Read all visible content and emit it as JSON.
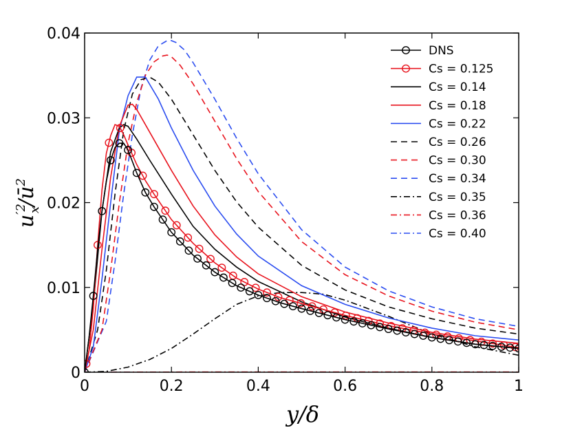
{
  "chart_data": {
    "type": "line",
    "title": "",
    "xlabel": "y/δ",
    "ylabel": "u'x²/ū²",
    "xlim": [
      0,
      1
    ],
    "ylim": [
      0,
      0.04
    ],
    "x_ticks": [
      "0",
      "0.2",
      "0.4",
      "0.6",
      "0.8",
      "1"
    ],
    "y_ticks": [
      "0",
      "0.01",
      "0.02",
      "0.03",
      "0.04"
    ],
    "grid": false,
    "legend_position": "top-right",
    "series": [
      {
        "name": "DNS",
        "color": "#000000",
        "dash": "solid",
        "marker": "circle",
        "x": [
          0,
          0.01,
          0.02,
          0.03,
          0.04,
          0.05,
          0.06,
          0.07,
          0.08,
          0.09,
          0.1,
          0.12,
          0.14,
          0.16,
          0.18,
          0.2,
          0.25,
          0.3,
          0.35,
          0.4,
          0.45,
          0.5,
          0.6,
          0.7,
          0.8,
          0.9,
          1.0
        ],
        "y": [
          0,
          0.004,
          0.009,
          0.0145,
          0.019,
          0.0225,
          0.025,
          0.0265,
          0.027,
          0.027,
          0.0262,
          0.0235,
          0.0212,
          0.0195,
          0.018,
          0.0165,
          0.0138,
          0.0118,
          0.0102,
          0.0091,
          0.0082,
          0.0075,
          0.0062,
          0.0051,
          0.0041,
          0.0033,
          0.0028
        ]
      },
      {
        "name": "Cs = 0.125",
        "color": "#e8121c",
        "dash": "solid",
        "marker": "circle",
        "x": [
          0,
          0.01,
          0.02,
          0.03,
          0.04,
          0.05,
          0.06,
          0.07,
          0.08,
          0.09,
          0.1,
          0.12,
          0.14,
          0.16,
          0.18,
          0.2,
          0.25,
          0.3,
          0.35,
          0.4,
          0.45,
          0.5,
          0.6,
          0.7,
          0.8,
          0.9,
          1.0
        ],
        "y": [
          0,
          0.0025,
          0.0075,
          0.015,
          0.0215,
          0.0258,
          0.0279,
          0.0292,
          0.029,
          0.028,
          0.0268,
          0.0245,
          0.0226,
          0.021,
          0.0195,
          0.018,
          0.0152,
          0.0129,
          0.0111,
          0.0098,
          0.0088,
          0.0081,
          0.0067,
          0.0055,
          0.0045,
          0.0037,
          0.0029
        ]
      },
      {
        "name": "Cs = 0.14",
        "color": "#000000",
        "dash": "solid",
        "marker": "none",
        "x": [
          0,
          0.02,
          0.04,
          0.06,
          0.08,
          0.09,
          0.1,
          0.12,
          0.15,
          0.2,
          0.25,
          0.3,
          0.35,
          0.4,
          0.5,
          0.6,
          0.7,
          0.8,
          0.9,
          1.0
        ],
        "y": [
          0,
          0.008,
          0.019,
          0.026,
          0.0288,
          0.0292,
          0.029,
          0.0275,
          0.025,
          0.021,
          0.0172,
          0.0145,
          0.0124,
          0.0107,
          0.0083,
          0.0065,
          0.0052,
          0.0041,
          0.0033,
          0.0028
        ]
      },
      {
        "name": "Cs = 0.18",
        "color": "#e8121c",
        "dash": "solid",
        "marker": "none",
        "x": [
          0,
          0.02,
          0.04,
          0.06,
          0.08,
          0.1,
          0.11,
          0.12,
          0.15,
          0.2,
          0.25,
          0.3,
          0.35,
          0.4,
          0.5,
          0.6,
          0.7,
          0.8,
          0.9,
          1.0
        ],
        "y": [
          0,
          0.005,
          0.0145,
          0.023,
          0.029,
          0.0315,
          0.0316,
          0.031,
          0.0283,
          0.0238,
          0.0196,
          0.0162,
          0.0136,
          0.0116,
          0.0089,
          0.0071,
          0.0058,
          0.0047,
          0.0039,
          0.0034
        ]
      },
      {
        "name": "Cs = 0.22",
        "color": "#2a4cf0",
        "dash": "solid",
        "marker": "none",
        "x": [
          0,
          0.02,
          0.04,
          0.06,
          0.08,
          0.1,
          0.12,
          0.14,
          0.17,
          0.2,
          0.25,
          0.3,
          0.35,
          0.4,
          0.5,
          0.6,
          0.7,
          0.8,
          0.9,
          1.0
        ],
        "y": [
          0,
          0.003,
          0.011,
          0.02,
          0.0285,
          0.0326,
          0.0348,
          0.0348,
          0.0322,
          0.0288,
          0.0238,
          0.0196,
          0.0163,
          0.0137,
          0.0102,
          0.008,
          0.0064,
          0.0052,
          0.0043,
          0.0038
        ]
      },
      {
        "name": "Cs = 0.26",
        "color": "#000000",
        "dash": "dashed",
        "marker": "none",
        "x": [
          0,
          0.03,
          0.05,
          0.07,
          0.09,
          0.11,
          0.13,
          0.15,
          0.17,
          0.2,
          0.25,
          0.3,
          0.35,
          0.4,
          0.5,
          0.6,
          0.7,
          0.8,
          0.9,
          1.0
        ],
        "y": [
          0,
          0.005,
          0.012,
          0.021,
          0.0285,
          0.0328,
          0.0345,
          0.0348,
          0.0342,
          0.0322,
          0.028,
          0.0238,
          0.0201,
          0.0171,
          0.0126,
          0.0097,
          0.0077,
          0.0063,
          0.0052,
          0.0045
        ]
      },
      {
        "name": "Cs = 0.30",
        "color": "#e8121c",
        "dash": "dashed",
        "marker": "none",
        "x": [
          0,
          0.04,
          0.06,
          0.08,
          0.1,
          0.12,
          0.14,
          0.16,
          0.18,
          0.19,
          0.2,
          0.22,
          0.25,
          0.3,
          0.35,
          0.4,
          0.5,
          0.6,
          0.7,
          0.8,
          0.9,
          1.0
        ],
        "y": [
          0,
          0.005,
          0.012,
          0.02,
          0.027,
          0.0318,
          0.035,
          0.0366,
          0.0373,
          0.0374,
          0.0372,
          0.0362,
          0.034,
          0.0296,
          0.0252,
          0.0213,
          0.0154,
          0.0115,
          0.009,
          0.0072,
          0.0059,
          0.005
        ]
      },
      {
        "name": "Cs = 0.34",
        "color": "#2a4cf0",
        "dash": "dashed",
        "marker": "none",
        "x": [
          0,
          0.05,
          0.07,
          0.09,
          0.11,
          0.13,
          0.15,
          0.17,
          0.19,
          0.2,
          0.21,
          0.23,
          0.25,
          0.3,
          0.35,
          0.4,
          0.5,
          0.6,
          0.7,
          0.8,
          0.9,
          1.0
        ],
        "y": [
          0,
          0.006,
          0.013,
          0.021,
          0.028,
          0.0335,
          0.0368,
          0.0385,
          0.0391,
          0.0391,
          0.0389,
          0.038,
          0.0365,
          0.0322,
          0.0276,
          0.0234,
          0.0168,
          0.0124,
          0.0096,
          0.0077,
          0.0063,
          0.0054
        ]
      },
      {
        "name": "Cs = 0.35",
        "color": "#000000",
        "dash": "dashdot",
        "marker": "none",
        "x": [
          0,
          0.05,
          0.1,
          0.15,
          0.2,
          0.25,
          0.3,
          0.35,
          0.4,
          0.45,
          0.5,
          0.55,
          0.6,
          0.7,
          0.8,
          0.9,
          1.0
        ],
        "y": [
          0,
          0.0001,
          0.0006,
          0.0015,
          0.0028,
          0.0045,
          0.0063,
          0.008,
          0.009,
          0.0094,
          0.0094,
          0.0092,
          0.0085,
          0.0066,
          0.0045,
          0.003,
          0.002
        ]
      },
      {
        "name": "Cs = 0.36",
        "color": "#e8121c",
        "dash": "dashdot",
        "marker": "none",
        "x": [
          0,
          0.2,
          0.4,
          0.6,
          0.8,
          1.0
        ],
        "y": [
          0,
          2e-05,
          3e-05,
          3e-05,
          3e-05,
          2e-05
        ]
      },
      {
        "name": "Cs = 0.40",
        "color": "#2a4cf0",
        "dash": "dashdot",
        "marker": "none",
        "x": [
          0,
          0.2,
          0.4,
          0.6,
          0.8,
          1.0
        ],
        "y": [
          0,
          1e-05,
          2e-05,
          2e-05,
          2e-05,
          1e-05
        ]
      }
    ]
  }
}
